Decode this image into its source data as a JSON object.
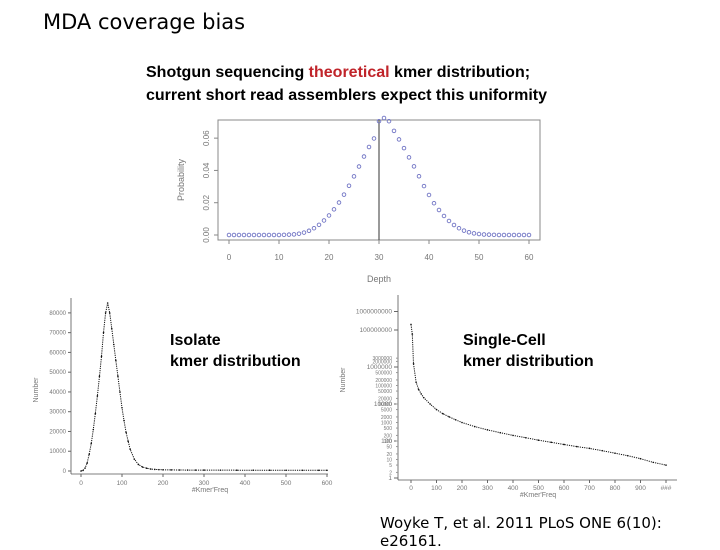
{
  "slide": {
    "title": "MDA coverage bias",
    "caption": {
      "line1_before": "Shotgun sequencing ",
      "line1_highlight": "theoretical",
      "line1_after": " kmer distribution;",
      "line2": "current short read assemblers expect this uniformity"
    },
    "isolate_label": [
      "Isolate",
      "kmer distribution"
    ],
    "singlecell_label": [
      "Single-Cell",
      "kmer distribution"
    ],
    "citation": "Woyke T, et al. 2011 PLoS ONE 6(10): e26161.",
    "highlight_color": "#c0242a"
  },
  "chart_data": [
    {
      "id": "theoretical",
      "type": "scatter",
      "xlabel": "Depth",
      "ylabel": "Probability",
      "xlim": [
        0,
        60
      ],
      "ylim": [
        0,
        0.07
      ],
      "xticks": [
        "0",
        "10",
        "20",
        "30",
        "40",
        "50",
        "60"
      ],
      "yticks": [
        "0.00",
        "0.02",
        "0.04",
        "0.06"
      ],
      "vline_x": 30,
      "marker_color": "#6f73c4",
      "x": [
        0,
        1,
        2,
        3,
        4,
        5,
        6,
        7,
        8,
        9,
        10,
        11,
        12,
        13,
        14,
        15,
        16,
        17,
        18,
        19,
        20,
        21,
        22,
        23,
        24,
        25,
        26,
        27,
        28,
        29,
        30,
        31,
        32,
        33,
        34,
        35,
        36,
        37,
        38,
        39,
        40,
        41,
        42,
        43,
        44,
        45,
        46,
        47,
        48,
        49,
        50,
        51,
        52,
        53,
        54,
        55,
        56,
        57,
        58,
        59,
        60
      ],
      "y": [
        0,
        0,
        0,
        0,
        0,
        0,
        0,
        0,
        0,
        0,
        0,
        0.0001,
        0.0002,
        0.0004,
        0.0008,
        0.0015,
        0.0026,
        0.0042,
        0.0063,
        0.009,
        0.0121,
        0.0159,
        0.0201,
        0.025,
        0.0305,
        0.0363,
        0.0424,
        0.0486,
        0.0545,
        0.0598,
        0.0705,
        0.0725,
        0.0705,
        0.0645,
        0.0592,
        0.0538,
        0.0481,
        0.0425,
        0.0364,
        0.0303,
        0.0248,
        0.0197,
        0.0155,
        0.0118,
        0.0087,
        0.0062,
        0.0042,
        0.0027,
        0.0017,
        0.001,
        0.0006,
        0.0003,
        0.0002,
        0.0001,
        0,
        0,
        0,
        0,
        0,
        0,
        0
      ]
    },
    {
      "id": "isolate",
      "type": "scatter",
      "xlabel": "#Kmer'Freq",
      "ylabel": "Number",
      "xlim": [
        0,
        600
      ],
      "ylim": [
        0,
        85000
      ],
      "xticks": [
        "0",
        "100",
        "200",
        "300",
        "400",
        "500",
        "600"
      ],
      "yticks": [
        "0",
        "10000",
        "20000",
        "30000",
        "40000",
        "50000",
        "60000",
        "70000",
        "80000"
      ],
      "x": [
        0,
        5,
        10,
        15,
        20,
        25,
        30,
        35,
        40,
        45,
        50,
        55,
        60,
        65,
        70,
        75,
        80,
        85,
        90,
        95,
        100,
        105,
        110,
        115,
        120,
        130,
        140,
        150,
        160,
        170,
        180,
        190,
        200,
        220,
        240,
        260,
        280,
        300,
        340,
        380,
        420,
        460,
        500,
        540,
        580,
        600
      ],
      "y": [
        0,
        300,
        1500,
        4000,
        8500,
        14000,
        21000,
        29000,
        38000,
        48000,
        58000,
        70000,
        80000,
        85000,
        80000,
        72000,
        64000,
        56000,
        48000,
        40000,
        32000,
        25500,
        19500,
        15000,
        11000,
        6000,
        3300,
        2000,
        1400,
        1000,
        800,
        700,
        600,
        550,
        500,
        480,
        460,
        450,
        440,
        420,
        400,
        390,
        380,
        370,
        360,
        350
      ]
    },
    {
      "id": "singlecell",
      "type": "scatter",
      "xlabel": "#Kmer'Freq",
      "ylabel": "Number",
      "y_scale": "log",
      "xlim": [
        0,
        1000
      ],
      "xticks": [
        "0",
        "100",
        "200",
        "300",
        "400",
        "500",
        "600",
        "700",
        "800",
        "900",
        "###"
      ],
      "yticks": [
        "1000000000",
        "100000000",
        "1000000",
        "10000",
        "100",
        "1"
      ],
      "y_minor_ticks": [
        "3000000",
        "2000000",
        "500000",
        "200000",
        "100000",
        "50000",
        "20000",
        "10000",
        "5000",
        "2000",
        "1000",
        "500",
        "200",
        "100",
        "50",
        "20",
        "10",
        "5",
        "2"
      ],
      "x": [
        0,
        5,
        10,
        20,
        30,
        40,
        50,
        75,
        100,
        125,
        150,
        175,
        200,
        250,
        300,
        350,
        400,
        450,
        500,
        550,
        600,
        650,
        700,
        750,
        800,
        850,
        900,
        950,
        1000
      ],
      "y": [
        200000000,
        60000000,
        1500000,
        150000,
        60000,
        35000,
        22000,
        10000,
        5000,
        3000,
        2000,
        1400,
        1000,
        600,
        400,
        280,
        200,
        150,
        110,
        85,
        65,
        50,
        40,
        30,
        22,
        16,
        11,
        7,
        5
      ]
    }
  ]
}
